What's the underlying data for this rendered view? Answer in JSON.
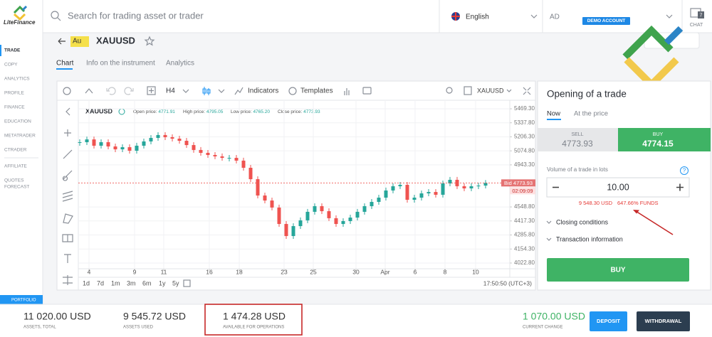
{
  "sidebar": {
    "logo": "LiteFinance",
    "menu": [
      "TRADE",
      "COPY",
      "ANALYTICS",
      "PROFILE",
      "FINANCE",
      "EDUCATION",
      "METATRADER",
      "CTRADER",
      "AFFILIATE",
      "QUOTES",
      "FORECAST"
    ],
    "portfolio": "PORTFOLIO"
  },
  "topbar": {
    "search": "Search for trading asset or trader",
    "language": "English",
    "account": "AD",
    "badge": "DEMO ACCOUNT",
    "chat": "CHAT",
    "chat_count": "7"
  },
  "asset": {
    "icon": "Au",
    "symbol": "XAUUSD",
    "tabs": [
      "Chart",
      "Info on the instrument",
      "Analytics"
    ]
  },
  "toolbar": {
    "interval": "H4",
    "indicators": "Indicators",
    "templates": "Templates",
    "symbol": "XAUUSD"
  },
  "chart_data": {
    "type": "candlestick",
    "symbol": "XAUUSD",
    "legend": [
      {
        "label": "Open price:",
        "value": "4771.91"
      },
      {
        "label": "High price:",
        "value": "4795.05"
      },
      {
        "label": "Low price:",
        "value": "4765.20"
      },
      {
        "label": "Close price:",
        "value": "4773.93"
      }
    ],
    "closes": [
      5156,
      5182,
      5123,
      5156,
      5116,
      5089,
      5109,
      5076,
      5123,
      5163,
      5196,
      5223,
      5203,
      5189,
      5169,
      5129,
      5083,
      5056,
      5036,
      5023,
      5009,
      5009,
      4983,
      4916,
      4809,
      4656,
      4609,
      4543,
      4389,
      4276,
      4369,
      4423,
      4503,
      4556,
      4509,
      4443,
      4389,
      4416,
      4449,
      4503,
      4556,
      4596,
      4636,
      4703,
      4743,
      4756,
      4616,
      4636,
      4676,
      4689,
      4663,
      4769,
      4803,
      4743,
      4723,
      4743,
      4749,
      4773.93
    ],
    "xlim": [
      -0.2,
      60.4
    ],
    "xticks": [
      {
        "value": 1.3,
        "label": "4"
      },
      {
        "value": 7.7,
        "label": "9"
      },
      {
        "value": 11.8,
        "label": "11"
      },
      {
        "value": 18.2,
        "label": "16"
      },
      {
        "value": 22.4,
        "label": "18"
      },
      {
        "value": 28.7,
        "label": "23"
      },
      {
        "value": 32.8,
        "label": "25"
      },
      {
        "value": 38.8,
        "label": "30"
      },
      {
        "value": 42.9,
        "label": "Apr"
      },
      {
        "value": 47.1,
        "label": "6"
      },
      {
        "value": 51.3,
        "label": "8"
      },
      {
        "value": 55.6,
        "label": "10"
      }
    ],
    "ylim": [
      3969.2,
      5522.6
    ],
    "yticks": [
      {
        "value": 5469.3,
        "label": "5469.30"
      },
      {
        "value": 5337.8,
        "label": "5337.80"
      },
      {
        "value": 5206.3,
        "label": "5206.30"
      },
      {
        "value": 5074.8,
        "label": "5074.80"
      },
      {
        "value": 4943.3,
        "label": "4943.30"
      },
      {
        "value": 4548.8,
        "label": "4548.80"
      },
      {
        "value": 4417.3,
        "label": "4417.30"
      },
      {
        "value": 4285.8,
        "label": "4285.80"
      },
      {
        "value": 4154.3,
        "label": "4154.30"
      },
      {
        "value": 4022.8,
        "label": "4022.80"
      }
    ],
    "grid": true,
    "up_color": "#26a69a",
    "down_color": "#ef5350",
    "bid_label": "Bid 4773.93",
    "countdown": "02:09:09",
    "periods": [
      "1d",
      "7d",
      "1m",
      "3m",
      "6m",
      "1y",
      "5y"
    ],
    "time": "17:50:50 (UTC+3)"
  },
  "trade": {
    "title": "Opening of a trade",
    "tabs": [
      "Now",
      "At the price"
    ],
    "sell_label": "SELL",
    "sell_price": "4773.93",
    "buy_label": "BUY",
    "buy_price": "4774.15",
    "volume_label": "Volume of a trade in lots",
    "volume": "10.00",
    "margin": "9 548.30 USD",
    "funds": "647.66% FUNDS",
    "closing": "Closing conditions",
    "info": "Transaction information",
    "button": "BUY"
  },
  "footer": {
    "items": [
      {
        "value": "11 020.00 USD",
        "label": "ASSETS, TOTAL"
      },
      {
        "value": "9 545.72 USD",
        "label": "ASSETS USED"
      },
      {
        "value": "1 474.28 USD",
        "label": "AVAILABLE FOR OPERATIONS"
      },
      {
        "value": "1 070.00 USD",
        "label": "CURRENT CHANGE"
      }
    ],
    "deposit": "DEPOSIT",
    "withdrawal": "WITHDRAWAL"
  }
}
